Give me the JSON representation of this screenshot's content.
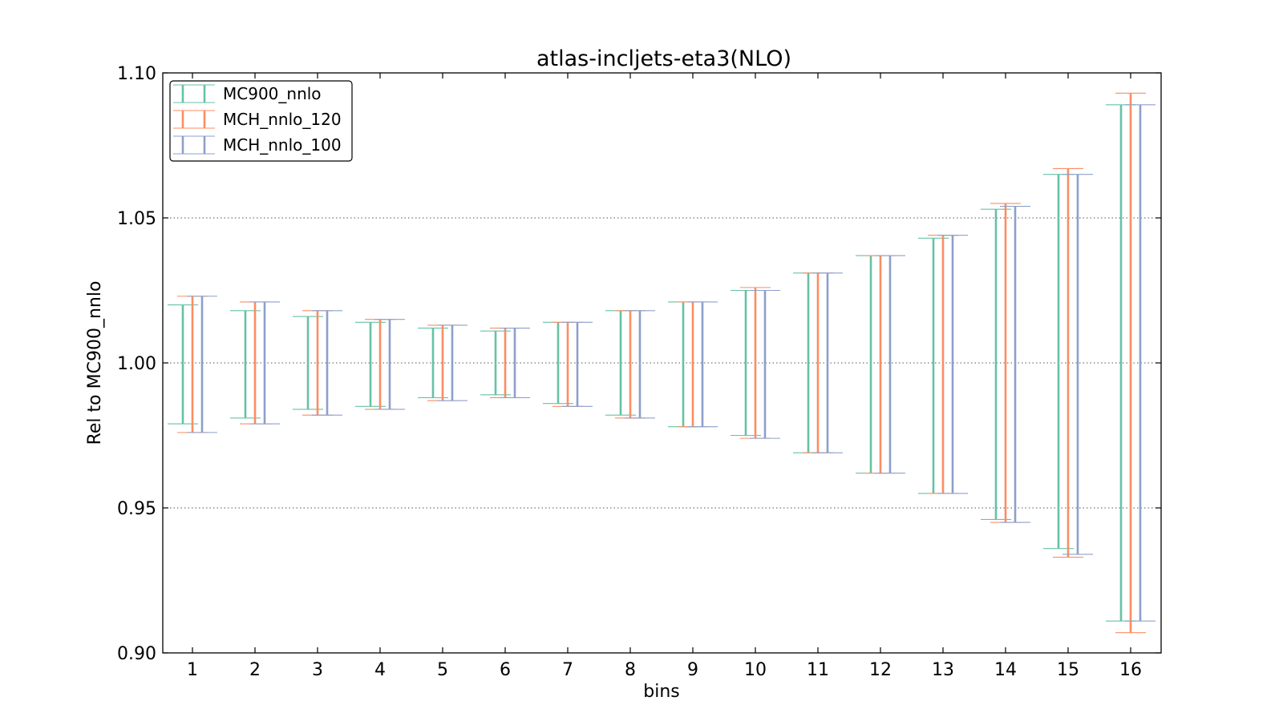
{
  "chart_data": {
    "type": "errorbar",
    "title": "atlas-incljets-eta3(NLO)",
    "xlabel": "bins",
    "ylabel": "Rel to MC900_nnlo",
    "ylim": [
      0.9,
      1.1
    ],
    "yticks": [
      "0.90",
      "0.95",
      "1.00",
      "1.05",
      "1.10"
    ],
    "grid": "horizontal dotted at 0.95, 1.00, 1.05",
    "legend_position": "top-left",
    "categories": [
      "1",
      "2",
      "3",
      "4",
      "5",
      "6",
      "7",
      "8",
      "9",
      "10",
      "11",
      "12",
      "13",
      "14",
      "15",
      "16"
    ],
    "series": [
      {
        "name": "MC900_nnlo",
        "color": "#66c2a5",
        "low": [
          0.979,
          0.981,
          0.984,
          0.985,
          0.988,
          0.989,
          0.986,
          0.982,
          0.978,
          0.975,
          0.969,
          0.962,
          0.955,
          0.946,
          0.936,
          0.911
        ],
        "high": [
          1.02,
          1.018,
          1.016,
          1.014,
          1.012,
          1.011,
          1.014,
          1.018,
          1.021,
          1.025,
          1.031,
          1.037,
          1.043,
          1.053,
          1.065,
          1.089
        ]
      },
      {
        "name": "MCH_nnlo_120",
        "color": "#fc8d62",
        "low": [
          0.976,
          0.979,
          0.982,
          0.984,
          0.987,
          0.988,
          0.985,
          0.981,
          0.978,
          0.974,
          0.969,
          0.962,
          0.955,
          0.945,
          0.933,
          0.907
        ],
        "high": [
          1.023,
          1.021,
          1.018,
          1.015,
          1.013,
          1.012,
          1.014,
          1.018,
          1.021,
          1.026,
          1.031,
          1.037,
          1.044,
          1.055,
          1.067,
          1.093
        ]
      },
      {
        "name": "MCH_nnlo_100",
        "color": "#8da0cb",
        "low": [
          0.976,
          0.979,
          0.982,
          0.984,
          0.987,
          0.988,
          0.985,
          0.981,
          0.978,
          0.974,
          0.969,
          0.962,
          0.955,
          0.945,
          0.934,
          0.911
        ],
        "high": [
          1.023,
          1.021,
          1.018,
          1.015,
          1.013,
          1.012,
          1.014,
          1.018,
          1.021,
          1.025,
          1.031,
          1.037,
          1.044,
          1.054,
          1.065,
          1.089
        ]
      }
    ]
  }
}
